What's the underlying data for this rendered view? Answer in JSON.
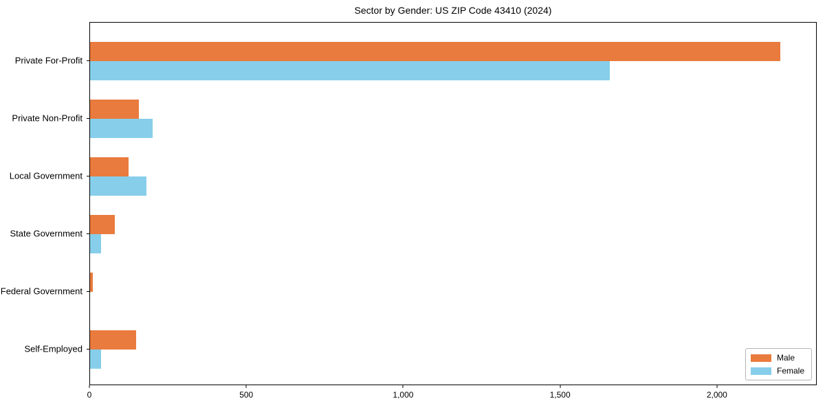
{
  "chart_data": {
    "type": "bar",
    "orientation": "horizontal",
    "title": "Sector by Gender: US ZIP Code 43410 (2024)",
    "categories": [
      "Private For-Profit",
      "Private Non-Profit",
      "Local Government",
      "State Government",
      "Federal Government",
      "Self-Employed"
    ],
    "series": [
      {
        "name": "Male",
        "color": "#e97b3e",
        "values": [
          2204,
          155,
          123,
          78,
          9,
          147
        ]
      },
      {
        "name": "Female",
        "color": "#87ceeb",
        "values": [
          1660,
          200,
          180,
          35,
          0,
          35
        ]
      }
    ],
    "xlabel": "",
    "ylabel": "",
    "xlim": [
      0,
      2318
    ],
    "xticks": [
      {
        "value": 0,
        "label": "0"
      },
      {
        "value": 500,
        "label": "500"
      },
      {
        "value": 1000,
        "label": "1,000"
      },
      {
        "value": 1500,
        "label": "1,500"
      },
      {
        "value": 2000,
        "label": "2,000"
      }
    ],
    "grid": false,
    "legend": {
      "position": "lower right",
      "entries": [
        "Male",
        "Female"
      ]
    }
  }
}
